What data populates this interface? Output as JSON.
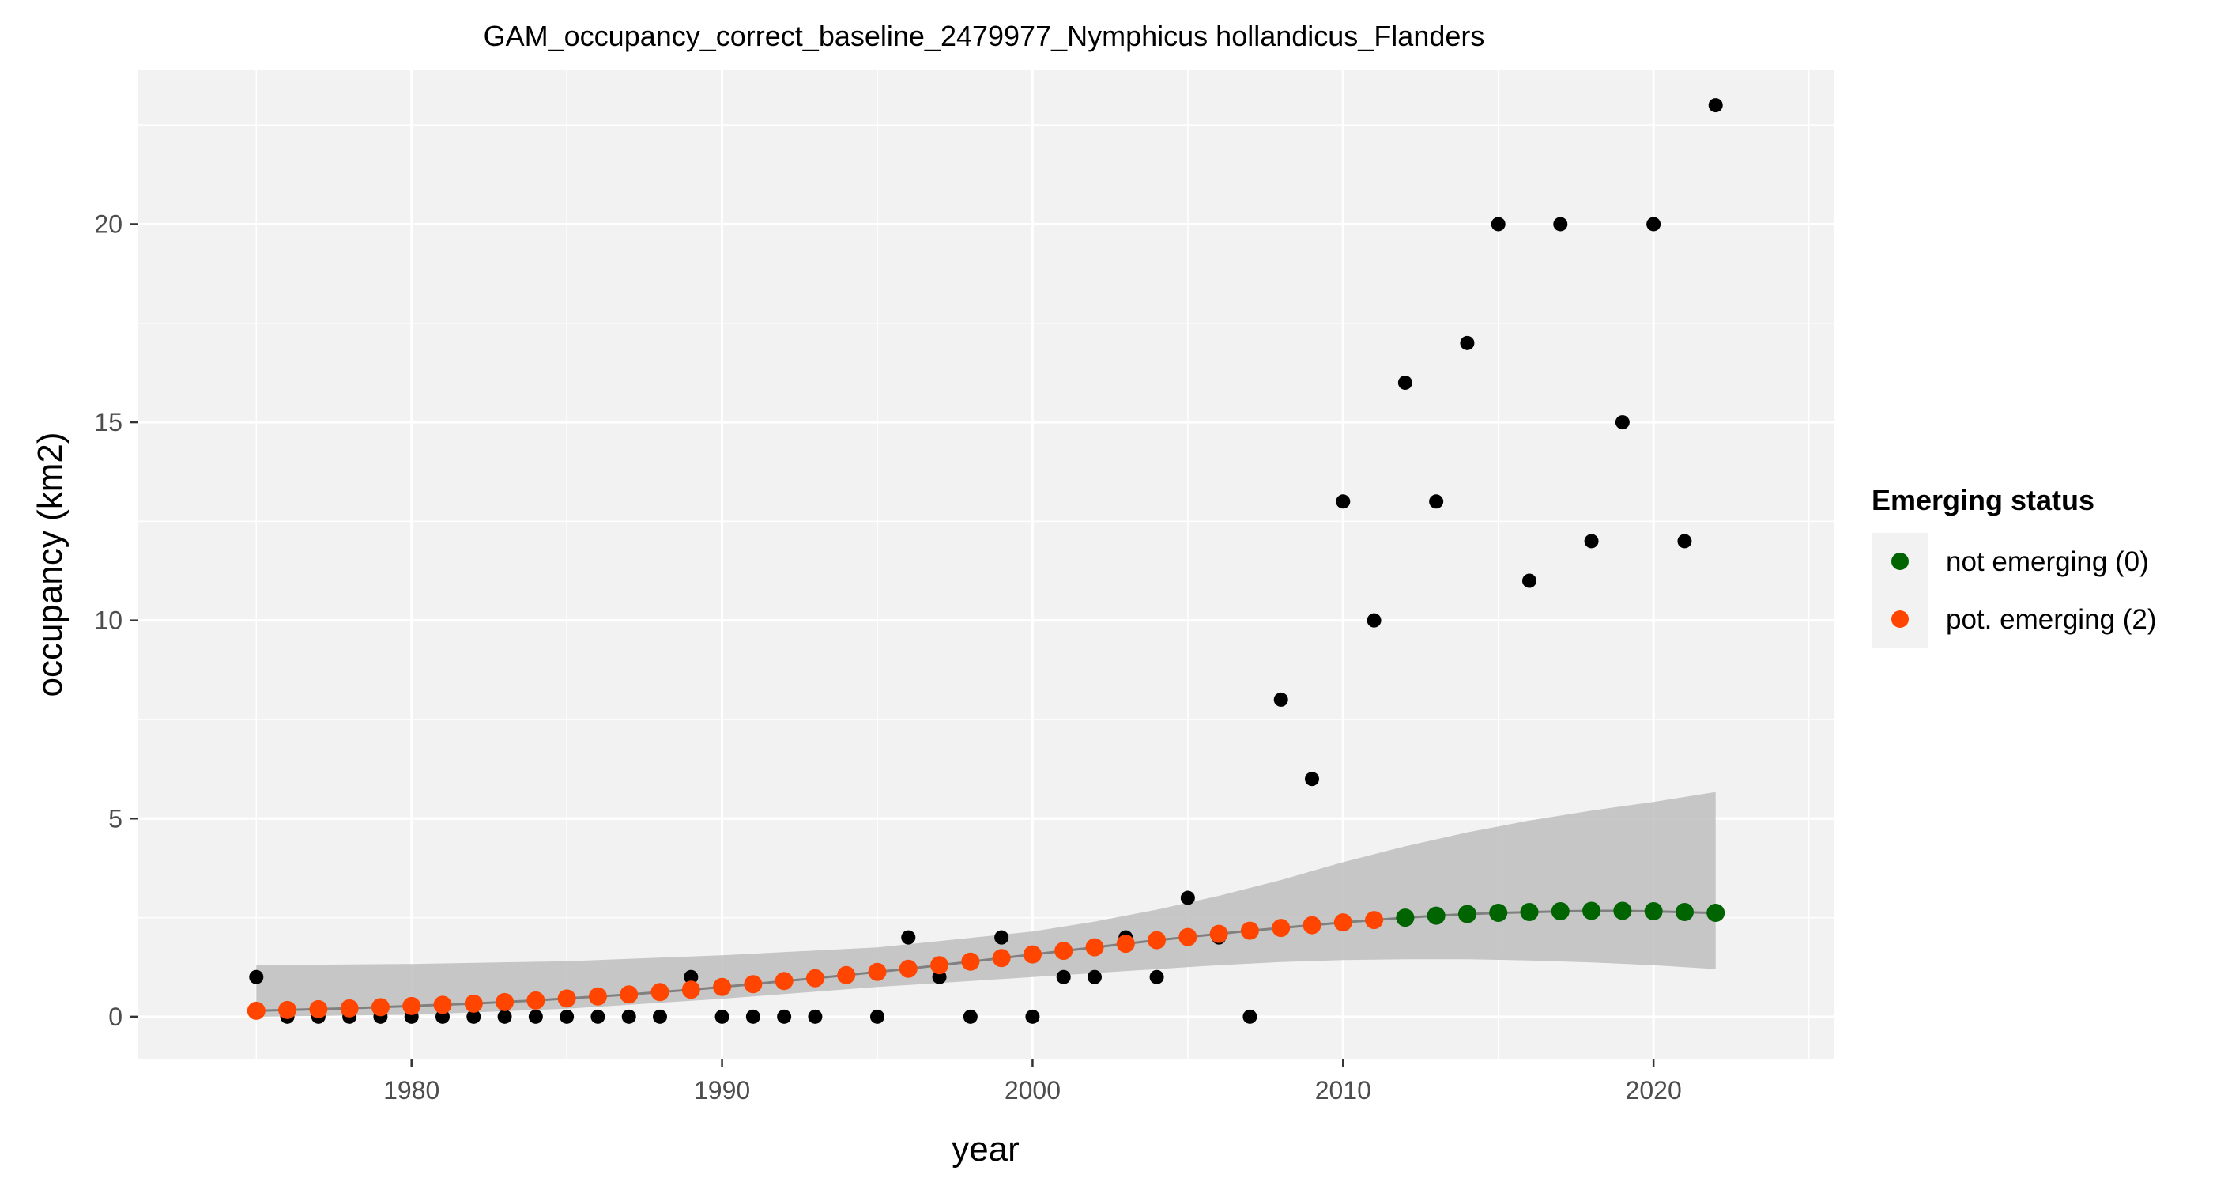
{
  "chart_data": {
    "type": "scatter",
    "title": "GAM_occupancy_correct_baseline_2479977_Nymphicus hollandicus_Flanders",
    "xlabel": "year",
    "ylabel": "occupancy (km2)",
    "xlim": [
      1971.2,
      2025.8
    ],
    "ylim": [
      -1.08,
      23.9
    ],
    "x_ticks": [
      1980,
      1990,
      2000,
      2010,
      2020
    ],
    "y_ticks": [
      0,
      5,
      10,
      15,
      20
    ],
    "grid": true,
    "legend_position": "right",
    "legend": {
      "title": "Emerging status",
      "entries": [
        {
          "label": "not emerging (0)",
          "color": "#006400"
        },
        {
          "label": "pot. emerging (2)",
          "color": "#FF4500"
        }
      ]
    },
    "colors": {
      "panel_background": "#F2F2F2",
      "grid": "#FFFFFF",
      "observed": "#000000",
      "fit_line": "#808080",
      "ribbon": "#BEBEBE",
      "not_emerging": "#006400",
      "pot_emerging": "#FF4500"
    },
    "observed": {
      "x": [
        1975,
        1976,
        1977,
        1978,
        1979,
        1980,
        1981,
        1982,
        1983,
        1984,
        1985,
        1986,
        1987,
        1988,
        1989,
        1990,
        1991,
        1992,
        1993,
        1995,
        1996,
        1997,
        1998,
        1999,
        2000,
        2001,
        2002,
        2003,
        2004,
        2005,
        2006,
        2007,
        2008,
        2009,
        2010,
        2011,
        2012,
        2013,
        2014,
        2015,
        2016,
        2017,
        2018,
        2019,
        2020,
        2021,
        2022
      ],
      "y": [
        1,
        0,
        0,
        0,
        0,
        0,
        0,
        0,
        0,
        0,
        0,
        0,
        0,
        0,
        1,
        0,
        0,
        0,
        0,
        0,
        2,
        1,
        0,
        2,
        0,
        1,
        1,
        2,
        1,
        3,
        2,
        0,
        8,
        6,
        13,
        10,
        16,
        13,
        17,
        20,
        11,
        20,
        12,
        15,
        20,
        12,
        23
      ]
    },
    "fit": {
      "x": [
        1975,
        1976,
        1977,
        1978,
        1979,
        1980,
        1981,
        1982,
        1983,
        1984,
        1985,
        1986,
        1987,
        1988,
        1989,
        1990,
        1991,
        1992,
        1993,
        1994,
        1995,
        1996,
        1997,
        1998,
        1999,
        2000,
        2001,
        2002,
        2003,
        2004,
        2005,
        2006,
        2007,
        2008,
        2009,
        2010,
        2011,
        2012,
        2013,
        2014,
        2015,
        2016,
        2017,
        2018,
        2019,
        2020,
        2021,
        2022
      ],
      "y": [
        0.15,
        0.17,
        0.19,
        0.21,
        0.24,
        0.27,
        0.3,
        0.33,
        0.37,
        0.41,
        0.46,
        0.51,
        0.56,
        0.62,
        0.68,
        0.75,
        0.82,
        0.9,
        0.97,
        1.05,
        1.13,
        1.21,
        1.3,
        1.39,
        1.48,
        1.57,
        1.66,
        1.75,
        1.84,
        1.93,
        2.01,
        2.09,
        2.17,
        2.24,
        2.31,
        2.38,
        2.44,
        2.5,
        2.55,
        2.59,
        2.62,
        2.64,
        2.66,
        2.67,
        2.67,
        2.66,
        2.64,
        2.62
      ],
      "status": [
        "2",
        "2",
        "2",
        "2",
        "2",
        "2",
        "2",
        "2",
        "2",
        "2",
        "2",
        "2",
        "2",
        "2",
        "2",
        "2",
        "2",
        "2",
        "2",
        "2",
        "2",
        "2",
        "2",
        "2",
        "2",
        "2",
        "2",
        "2",
        "2",
        "2",
        "2",
        "2",
        "2",
        "2",
        "2",
        "2",
        "2",
        "0",
        "0",
        "0",
        "0",
        "0",
        "0",
        "0",
        "0",
        "0",
        "0",
        "0"
      ]
    },
    "confidence_band": {
      "x": [
        1975,
        1980,
        1985,
        1990,
        1995,
        2000,
        2002,
        2004,
        2006,
        2008,
        2010,
        2012,
        2014,
        2016,
        2018,
        2020,
        2022
      ],
      "lower": [
        0.0,
        0.05,
        0.2,
        0.45,
        0.75,
        1.0,
        1.1,
        1.2,
        1.3,
        1.38,
        1.43,
        1.45,
        1.45,
        1.42,
        1.37,
        1.3,
        1.2
      ],
      "upper": [
        1.3,
        1.33,
        1.4,
        1.55,
        1.75,
        2.15,
        2.4,
        2.7,
        3.05,
        3.45,
        3.9,
        4.3,
        4.65,
        4.95,
        5.2,
        5.42,
        5.67
      ]
    }
  }
}
